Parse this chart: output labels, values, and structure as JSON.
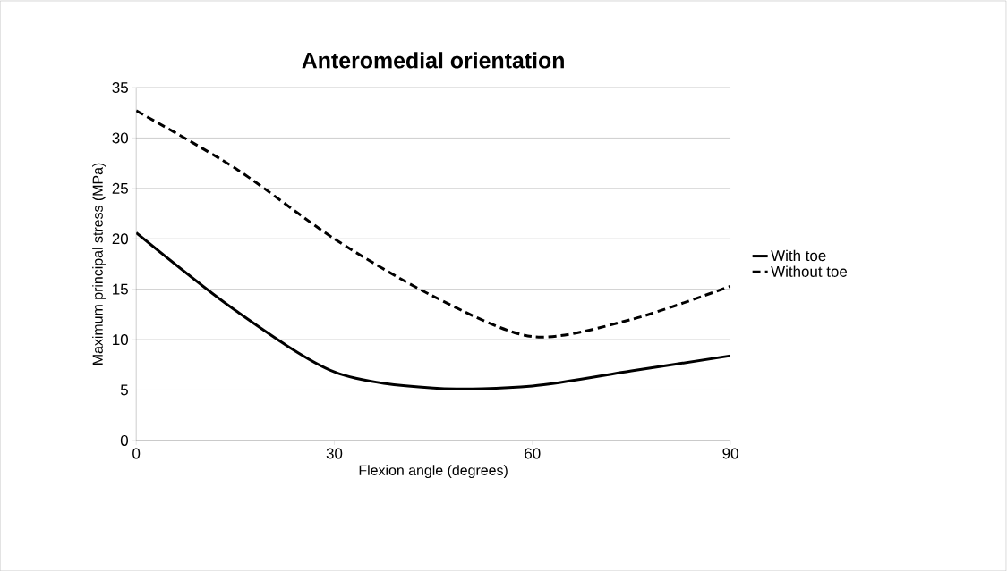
{
  "chart_data": {
    "type": "line",
    "title": "Anteromedial orientation",
    "xlabel": "Flexion angle (degrees)",
    "ylabel": "Maximum principal stress (MPa)",
    "x": [
      0,
      15,
      30,
      45,
      60,
      75,
      90
    ],
    "series": [
      {
        "name": "With toe",
        "color": "#000000",
        "line_style": "solid",
        "values": [
          20.6,
          12.9,
          6.8,
          5.2,
          5.4,
          6.9,
          8.4
        ]
      },
      {
        "name": "Without toe",
        "color": "#000000",
        "line_style": "dashed",
        "values": [
          32.7,
          27.0,
          20.0,
          14.3,
          10.3,
          12.0,
          15.3
        ]
      }
    ],
    "xlim": [
      0,
      90
    ],
    "xticks": [
      0,
      30,
      60,
      90
    ],
    "ylim": [
      0,
      35
    ],
    "yticks": [
      0,
      5,
      10,
      15,
      20,
      25,
      30,
      35
    ],
    "grid": "y",
    "legend": "right",
    "marker": "none"
  }
}
